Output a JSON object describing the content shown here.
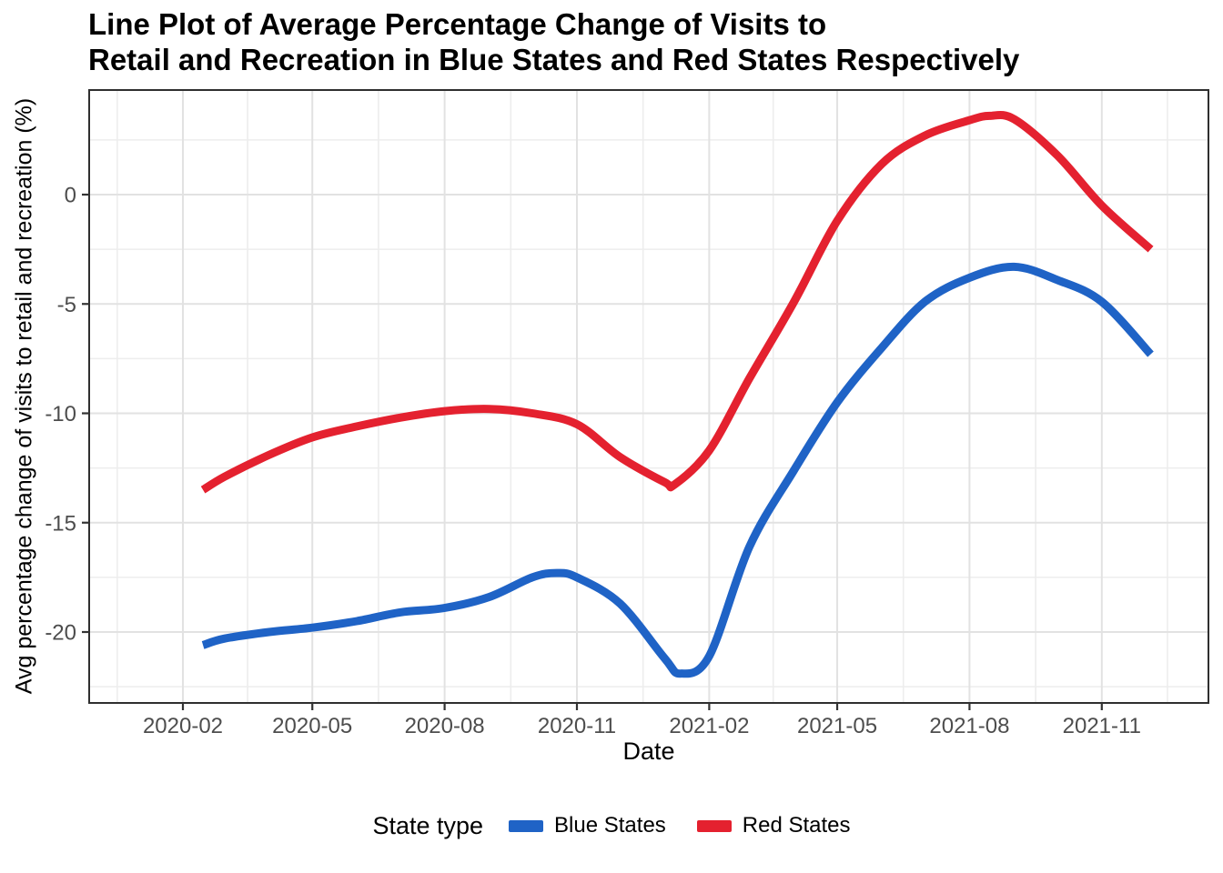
{
  "title": {
    "line1": "Line Plot of Average Percentage Change of Visits to",
    "line2": "Retail and Recreation in Blue States and Red States Respectively"
  },
  "y_axis": {
    "label": "Avg percentage change of visits to retail and recreation (%)",
    "ticks": [
      0,
      -5,
      -10,
      -15,
      -20
    ],
    "minor_ticks": [
      2.5,
      -2.5,
      -7.5,
      -12.5,
      -17.5,
      -22.5
    ]
  },
  "x_axis": {
    "label": "Date",
    "ticks": [
      "2020-02",
      "2020-05",
      "2020-08",
      "2020-11",
      "2021-02",
      "2021-05",
      "2021-08",
      "2021-11"
    ]
  },
  "legend": {
    "title": "State type",
    "items": [
      {
        "label": "Blue States",
        "color": "#1f63c6"
      },
      {
        "label": "Red States",
        "color": "#e4212f"
      }
    ]
  },
  "colors": {
    "blue_series": "#1f63c6",
    "red_series": "#e4212f",
    "major_grid": "#e2e2e2",
    "minor_grid": "#ededed",
    "panel_border": "#2f2f2f",
    "tick_mark": "#333333",
    "tick_label": "#4d4d4d"
  },
  "chart_data": {
    "type": "line",
    "title": "Line Plot of Average Percentage Change of Visits to Retail and Recreation in Blue States and Red States Respectively",
    "xlabel": "Date",
    "ylabel": "Avg percentage change of visits to retail and recreation (%)",
    "x_tick_labels": [
      "2020-02",
      "2020-05",
      "2020-08",
      "2020-11",
      "2021-02",
      "2021-05",
      "2021-08",
      "2021-11"
    ],
    "y_tick_labels": [
      0,
      -5,
      -10,
      -15,
      -20
    ],
    "ylim": [
      -23.2,
      4.8
    ],
    "xlim": [
      "2019-11-25",
      "2022-01-14"
    ],
    "grid": true,
    "legend_title": "State type",
    "legend_position": "bottom",
    "series": [
      {
        "name": "Blue States",
        "color": "#1f63c6",
        "points": [
          [
            "2020-02-15",
            -20.6
          ],
          [
            "2020-03-01",
            -20.3
          ],
          [
            "2020-04-01",
            -20.0
          ],
          [
            "2020-05-01",
            -19.8
          ],
          [
            "2020-06-01",
            -19.5
          ],
          [
            "2020-07-01",
            -19.1
          ],
          [
            "2020-08-01",
            -18.9
          ],
          [
            "2020-09-01",
            -18.4
          ],
          [
            "2020-10-01",
            -17.5
          ],
          [
            "2020-10-18",
            -17.3
          ],
          [
            "2020-11-01",
            -17.5
          ],
          [
            "2020-12-01",
            -18.7
          ],
          [
            "2021-01-01",
            -21.2
          ],
          [
            "2021-01-12",
            -21.9
          ],
          [
            "2021-02-01",
            -21.1
          ],
          [
            "2021-03-01",
            -16.1
          ],
          [
            "2021-04-01",
            -12.6
          ],
          [
            "2021-05-01",
            -9.5
          ],
          [
            "2021-06-01",
            -7.0
          ],
          [
            "2021-07-01",
            -4.9
          ],
          [
            "2021-08-01",
            -3.8
          ],
          [
            "2021-09-01",
            -3.3
          ],
          [
            "2021-10-01",
            -3.9
          ],
          [
            "2021-11-01",
            -4.9
          ],
          [
            "2021-12-05",
            -7.3
          ]
        ]
      },
      {
        "name": "Red States",
        "color": "#e4212f",
        "points": [
          [
            "2020-02-15",
            -13.5
          ],
          [
            "2020-03-01",
            -12.9
          ],
          [
            "2020-04-01",
            -11.9
          ],
          [
            "2020-05-01",
            -11.1
          ],
          [
            "2020-06-01",
            -10.6
          ],
          [
            "2020-07-01",
            -10.2
          ],
          [
            "2020-08-01",
            -9.9
          ],
          [
            "2020-09-01",
            -9.8
          ],
          [
            "2020-10-01",
            -10.0
          ],
          [
            "2020-11-01",
            -10.5
          ],
          [
            "2020-12-01",
            -12.0
          ],
          [
            "2021-01-01",
            -13.15
          ],
          [
            "2021-01-08",
            -13.25
          ],
          [
            "2021-02-01",
            -11.7
          ],
          [
            "2021-03-01",
            -8.4
          ],
          [
            "2021-04-01",
            -4.9
          ],
          [
            "2021-05-01",
            -1.2
          ],
          [
            "2021-06-01",
            1.4
          ],
          [
            "2021-07-01",
            2.7
          ],
          [
            "2021-08-01",
            3.4
          ],
          [
            "2021-08-15",
            3.6
          ],
          [
            "2021-09-01",
            3.45
          ],
          [
            "2021-10-01",
            1.8
          ],
          [
            "2021-11-01",
            -0.5
          ],
          [
            "2021-12-05",
            -2.5
          ]
        ]
      }
    ]
  }
}
